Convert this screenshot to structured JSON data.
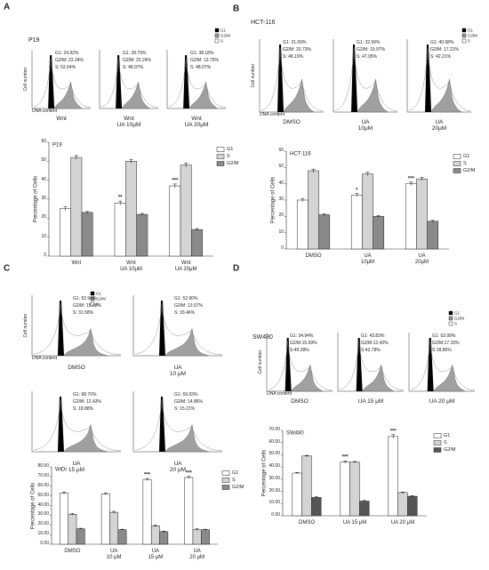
{
  "panels": [
    {
      "label": "A",
      "cell_line": "P19",
      "legend": [
        "G1",
        "G2/M",
        "S"
      ],
      "axis_labels": {
        "y": "Cell number",
        "x": "DNA content"
      },
      "histograms": [
        {
          "stats": [
            "G1: 24.92%",
            "G2/M: 23.34%",
            "S: 52.64%"
          ],
          "condition": "Wnt"
        },
        {
          "stats": [
            "G1: 28.79%",
            "G2/M: 22.24%",
            "S: 48.97%"
          ],
          "condition": "Wnt\nUA 10μM"
        },
        {
          "stats": [
            "G1: 38.18%",
            "G2/M: 13.75%",
            "S: 48.07%"
          ],
          "condition": "Wnt\nUA 20μM"
        }
      ]
    },
    {
      "label": "B",
      "cell_line": "HCT-116",
      "legend": [
        "G1",
        "G2/M",
        "S"
      ],
      "axis_labels": {
        "y": "Cell number",
        "x": "DNA content"
      },
      "histograms": [
        {
          "stats": [
            "G1: 31.09%",
            "G2/M: 20.73%",
            "S: 48.19%"
          ],
          "condition": "DMSO"
        },
        {
          "stats": [
            "G1: 32.99%",
            "G2/M: 19.97%",
            "S: 47.05%"
          ],
          "condition": "UA\n10μM"
        },
        {
          "stats": [
            "G1: 40.58%",
            "G2/M: 17.21%",
            "S: 42.21%"
          ],
          "condition": "UA\n20μM"
        }
      ]
    },
    {
      "label": "C",
      "legend": [
        "G1",
        "G2/M",
        "S"
      ],
      "axis_labels": {
        "y": "Cell number",
        "x": "DNA content"
      },
      "histograms": [
        {
          "stats": [
            "G1: 52.94%",
            "G2/M: 15.48%",
            "S: 31.58%"
          ],
          "condition": "DMSO"
        },
        {
          "stats": [
            "G1: 52.90%",
            "G2/M: 13.57%",
            "S: 33.46%"
          ],
          "condition": "UA\n10 μM"
        },
        {
          "stats": [
            "G1: 68.70%",
            "G2/M: 12.43%",
            "S: 18.88%"
          ],
          "condition": "UA\n15 μM"
        },
        {
          "stats": [
            "G1: 69.93%",
            "G2/M: 14.86%",
            "S: 15.21%"
          ],
          "condition": "UA\n20 μM"
        }
      ]
    },
    {
      "label": "D",
      "cell_line": "SW480",
      "legend": [
        "G1",
        "G2/M",
        "S"
      ],
      "axis_labels": {
        "y": "Cell number",
        "x": "DNA content"
      },
      "histograms": [
        {
          "stats": [
            "G1: 34.94%",
            "G2/M:15.69%",
            "S:49.38%"
          ],
          "condition": "DMSO"
        },
        {
          "stats": [
            "G1: 43.83%",
            "G2/M:12.42%",
            "S:43.78%"
          ],
          "condition": "UA 15 μM"
        },
        {
          "stats": [
            "G1: 63.99%",
            "G2/M:17.15%",
            "S:18.86%"
          ],
          "condition": "UA 20 μM"
        }
      ]
    }
  ],
  "chart_data": [
    {
      "type": "bar",
      "title": "P19",
      "y_label": "Percentage of Cells",
      "categories": [
        "Wnt",
        "Wnt\nUA 10μM",
        "Wnt\nUA 20μM"
      ],
      "series": [
        {
          "name": "G1",
          "color": "#ffffff",
          "values": [
            25,
            28,
            37
          ],
          "errors": [
            1,
            1,
            1
          ],
          "significance": [
            null,
            "**",
            "***"
          ]
        },
        {
          "name": "S",
          "color": "#d4d4d4",
          "values": [
            52,
            50,
            48
          ],
          "errors": [
            1,
            1,
            1
          ]
        },
        {
          "name": "G2/M",
          "color": "#8a8a8a",
          "values": [
            23,
            22,
            14
          ],
          "errors": [
            0.5,
            0.5,
            0.5
          ]
        }
      ],
      "ylim": [
        0,
        60
      ],
      "yticks": [
        0,
        10,
        20,
        30,
        40,
        50,
        60
      ],
      "legend": "upper right"
    },
    {
      "type": "bar",
      "title": "HCT-116",
      "y_label": "Percentage of Cells",
      "categories": [
        "DMSO",
        "UA\n10μM",
        "UA\n20μM"
      ],
      "series": [
        {
          "name": "G1",
          "color": "#ffffff",
          "values": [
            30,
            33,
            40
          ],
          "errors": [
            1,
            1,
            1
          ],
          "significance": [
            null,
            "*",
            "***"
          ]
        },
        {
          "name": "S",
          "color": "#d4d4d4",
          "values": [
            48,
            46,
            43
          ],
          "errors": [
            1,
            1,
            1
          ]
        },
        {
          "name": "G2/M",
          "color": "#8a8a8a",
          "values": [
            21,
            20,
            17
          ],
          "errors": [
            0.5,
            0.5,
            0.5
          ]
        }
      ],
      "ylim": [
        0,
        60
      ],
      "yticks": [
        0,
        10,
        20,
        30,
        40,
        50,
        60
      ],
      "legend": "upper right"
    },
    {
      "type": "bar",
      "title": "WiDr",
      "y_label": "Percentage of Cells",
      "categories": [
        "DMSO",
        "UA\n10 μM",
        "UA\n15 μM",
        "UA\n20 μM"
      ],
      "series": [
        {
          "name": "G1",
          "color": "#ffffff",
          "values": [
            53,
            52,
            67,
            69
          ],
          "errors": [
            1,
            1,
            1,
            1
          ],
          "significance": [
            null,
            null,
            "***",
            "***"
          ]
        },
        {
          "name": "S",
          "color": "#d4d4d4",
          "values": [
            31,
            33,
            19,
            15
          ],
          "errors": [
            1,
            1,
            1,
            1
          ]
        },
        {
          "name": "G2/M",
          "color": "#8a8a8a",
          "values": [
            16,
            15,
            13,
            15
          ],
          "errors": [
            0.5,
            0.5,
            0.5,
            0.5
          ]
        }
      ],
      "ylim": [
        0,
        80
      ],
      "yticks": [
        {
          "value": 0,
          "label": "0.00"
        },
        {
          "value": 10,
          "label": "10.00"
        },
        {
          "value": 20,
          "label": "20.00"
        },
        {
          "value": 30,
          "label": "30.00"
        },
        {
          "value": 40,
          "label": "40.00"
        },
        {
          "value": 50,
          "label": "50.00"
        },
        {
          "value": 60,
          "label": "60.00"
        },
        {
          "value": 70,
          "label": "70.00"
        },
        {
          "value": 80,
          "label": "80.00"
        }
      ],
      "legend": "upper right"
    },
    {
      "type": "bar",
      "title": "SW480",
      "y_label": "Percentage of Cells",
      "categories": [
        "DMSO",
        "UA 15 μM",
        "UA 20 μM"
      ],
      "series": [
        {
          "name": "G1",
          "color": "#ffffff",
          "values": [
            35,
            44,
            65
          ],
          "errors": [
            0.5,
            1,
            1.5
          ],
          "significance": [
            null,
            "***",
            "***"
          ]
        },
        {
          "name": "S",
          "color": "#d4d4d4",
          "values": [
            49,
            44,
            19
          ],
          "errors": [
            0.5,
            0.5,
            0.5
          ]
        },
        {
          "name": "G2/M",
          "color": "#555555",
          "values": [
            15,
            12,
            16
          ],
          "errors": [
            0.5,
            0.5,
            0.5
          ]
        }
      ],
      "ylim": [
        0,
        70
      ],
      "yticks": [
        {
          "value": 0,
          "label": "0.00"
        },
        {
          "value": 10,
          "label": "10.00"
        },
        {
          "value": 20,
          "label": "20.00"
        },
        {
          "value": 30,
          "label": "30.00"
        },
        {
          "value": 40,
          "label": "40.00"
        },
        {
          "value": 50,
          "label": "50.00"
        },
        {
          "value": 60,
          "label": "60.00"
        },
        {
          "value": 70,
          "label": "70.00"
        }
      ],
      "legend": "upper right"
    }
  ]
}
